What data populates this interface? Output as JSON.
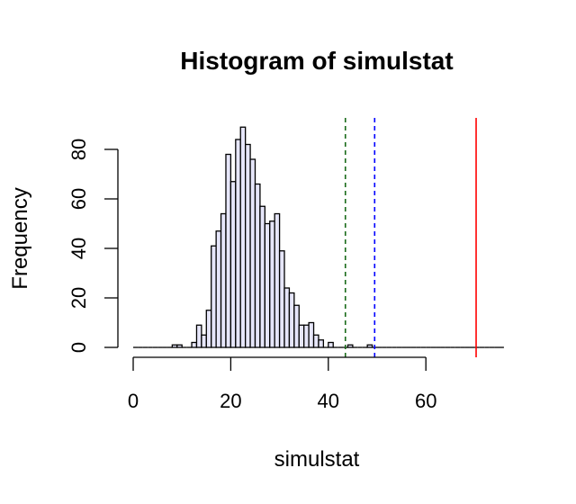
{
  "chart_data": {
    "type": "bar",
    "title": "Histogram of simulstat",
    "xlabel": "simulstat",
    "ylabel": "Frequency",
    "bin_width": 1,
    "bin_start": 0,
    "counts": [
      0,
      0,
      0,
      0,
      0,
      0,
      0,
      0,
      1,
      1,
      0,
      0,
      2,
      9,
      5,
      15,
      41,
      47,
      54,
      78,
      67,
      84,
      89,
      82,
      76,
      66,
      57,
      50,
      51,
      54,
      39,
      24,
      22,
      17,
      9,
      9,
      10,
      5,
      3,
      0,
      2,
      0,
      0,
      0,
      1,
      0,
      0,
      0,
      1,
      0,
      0,
      0,
      0,
      0,
      0,
      0,
      0,
      0,
      0,
      0,
      0,
      0,
      0,
      0,
      0,
      0,
      0,
      0,
      0,
      0,
      0,
      0,
      0,
      0,
      0,
      0
    ],
    "xlim": [
      0,
      76
    ],
    "ylim": [
      0,
      92
    ],
    "x_ticks": [
      0,
      20,
      40,
      60
    ],
    "x_tick_labels": [
      "0",
      "20",
      "40",
      "60"
    ],
    "y_ticks": [
      0,
      20,
      40,
      60,
      80
    ],
    "y_tick_labels": [
      "0",
      "20",
      "40",
      "60",
      "80"
    ],
    "vlines": [
      {
        "x": 43.5,
        "color": "#1a6b1a",
        "style": "dashed"
      },
      {
        "x": 49.5,
        "color": "#0000ff",
        "style": "dashed"
      },
      {
        "x": 70.3,
        "color": "#ff0000",
        "style": "solid"
      }
    ],
    "bar_fill": "#e6e6fa",
    "bar_stroke": "#000000"
  }
}
